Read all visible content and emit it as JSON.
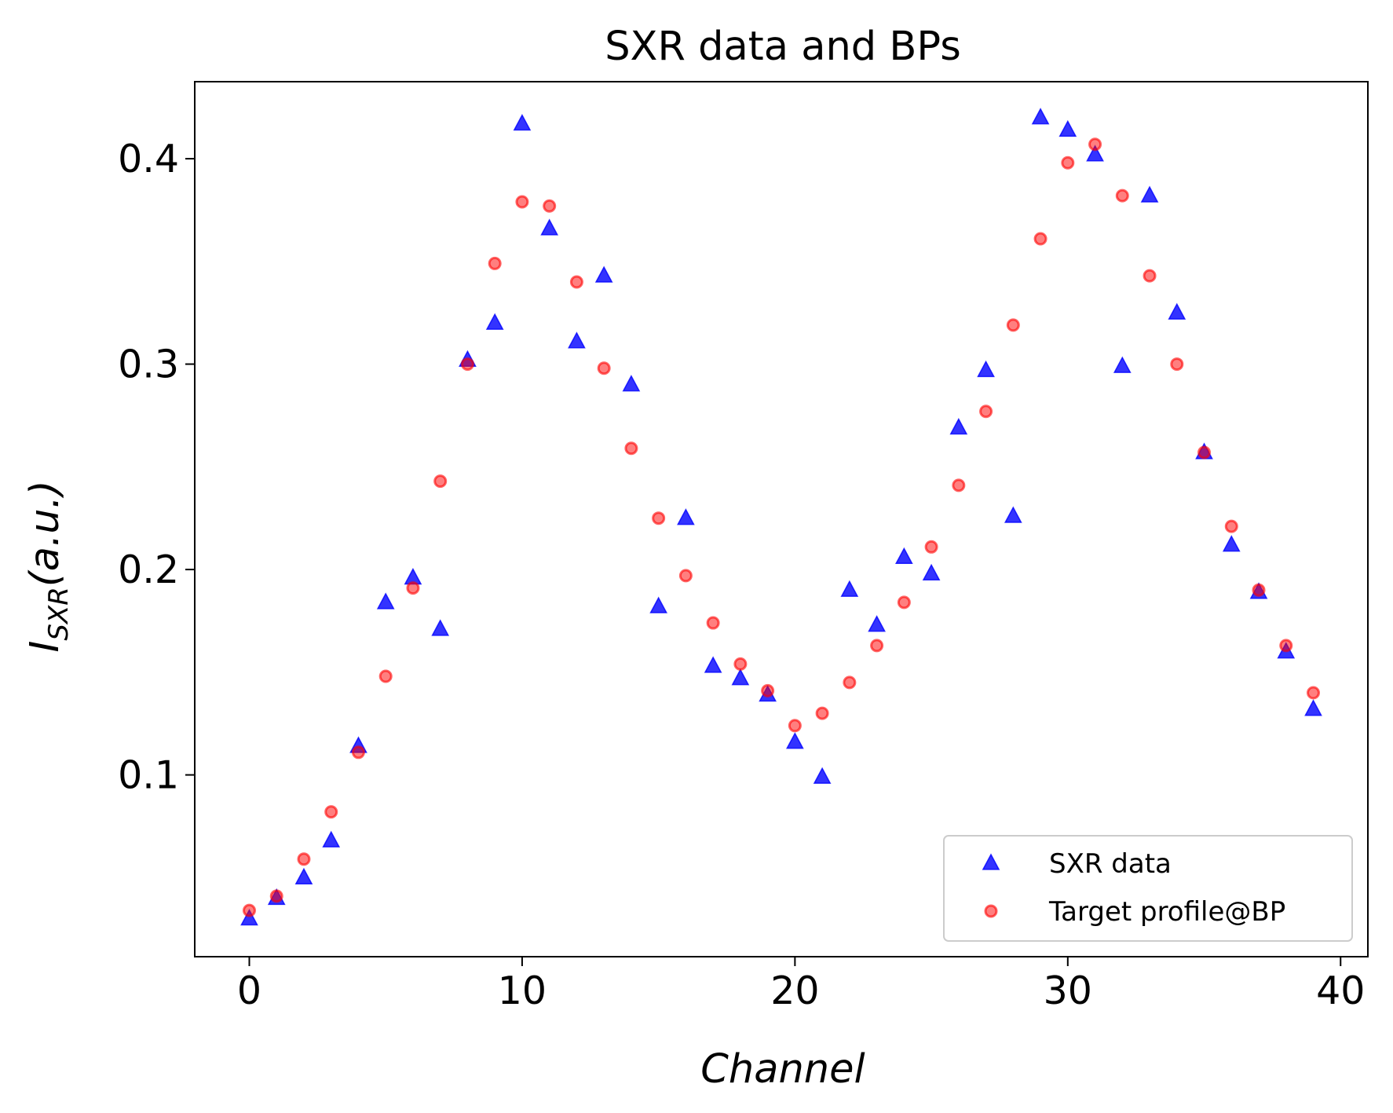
{
  "chart_data": {
    "type": "scatter",
    "title": "SXR data and BPs",
    "xlabel": "Channel",
    "ylabel": {
      "main": "I",
      "sub": "SXR",
      "rest": "(a.u.)"
    },
    "xlim": [
      -2,
      41
    ],
    "ylim": [
      0.0115,
      0.4375
    ],
    "xticks": [
      0,
      10,
      20,
      30,
      40
    ],
    "xtick_labels": [
      "0",
      "10",
      "20",
      "30",
      "40"
    ],
    "yticks": [
      0.1,
      0.2,
      0.3,
      0.4
    ],
    "ytick_labels": [
      "0.1",
      "0.2",
      "0.3",
      "0.4"
    ],
    "grid": false,
    "legend_position": "lower-right",
    "series": [
      {
        "name": "SXR data",
        "marker": "triangle",
        "color": "#0000ff",
        "x": [
          0,
          1,
          2,
          3,
          4,
          5,
          6,
          7,
          8,
          9,
          10,
          11,
          12,
          13,
          14,
          15,
          16,
          17,
          18,
          19,
          20,
          21,
          22,
          23,
          24,
          25,
          26,
          27,
          28,
          29,
          30,
          31,
          32,
          33,
          34,
          35,
          36,
          37,
          38,
          39
        ],
        "y": [
          0.03,
          0.04,
          0.05,
          0.068,
          0.114,
          0.184,
          0.196,
          0.171,
          0.302,
          0.32,
          0.417,
          0.366,
          0.311,
          0.343,
          0.29,
          0.182,
          0.225,
          0.153,
          0.147,
          0.139,
          0.116,
          0.099,
          0.19,
          0.173,
          0.206,
          0.198,
          0.269,
          0.297,
          0.226,
          0.42,
          0.414,
          0.402,
          0.299,
          0.382,
          0.325,
          0.257,
          0.212,
          0.189,
          0.16,
          0.132
        ]
      },
      {
        "name": "Target profile@BP",
        "marker": "circle",
        "color": "#ff0000",
        "x": [
          0,
          1,
          2,
          3,
          4,
          5,
          6,
          7,
          8,
          9,
          10,
          11,
          12,
          13,
          14,
          15,
          16,
          17,
          18,
          19,
          20,
          21,
          22,
          23,
          24,
          25,
          26,
          27,
          28,
          29,
          30,
          31,
          32,
          33,
          34,
          35,
          36,
          37,
          38,
          39
        ],
        "y": [
          0.034,
          0.041,
          0.059,
          0.082,
          0.111,
          0.148,
          0.191,
          0.243,
          0.3,
          0.349,
          0.379,
          0.377,
          0.34,
          0.298,
          0.259,
          0.225,
          0.197,
          0.174,
          0.154,
          0.141,
          0.124,
          0.13,
          0.145,
          0.163,
          0.184,
          0.211,
          0.241,
          0.277,
          0.319,
          0.361,
          0.398,
          0.407,
          0.382,
          0.343,
          0.3,
          0.257,
          0.221,
          0.19,
          0.163,
          0.14
        ]
      }
    ]
  }
}
